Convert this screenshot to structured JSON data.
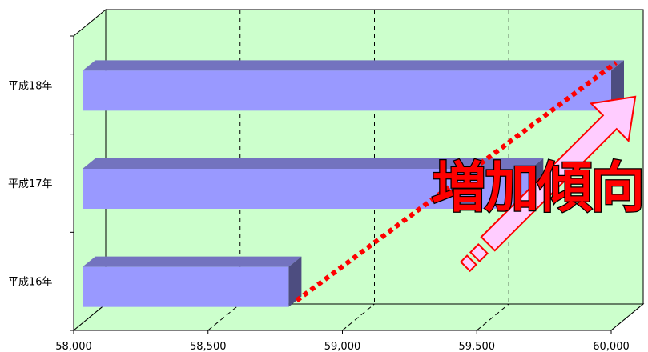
{
  "chart_data": {
    "type": "bar",
    "orientation": "horizontal",
    "style": "3d",
    "categories": [
      "平成16年",
      "平成17年",
      "平成18年"
    ],
    "values": [
      58800,
      59700,
      60000
    ],
    "xlim": [
      58000,
      60000
    ],
    "xticks": [
      58000,
      58500,
      59000,
      59500,
      60000
    ],
    "xtick_labels": [
      "58,000",
      "58,500",
      "59,000",
      "59,500",
      "60,000"
    ],
    "title": "",
    "xlabel": "",
    "ylabel": "",
    "grid": "vertical dashed",
    "annotation": "増加傾向",
    "colors": {
      "plot_background": "#ccffcc",
      "bar_front": "#9999ff",
      "bar_top": "#7373bf",
      "bar_side": "#4d4d80",
      "trend_line": "#ff0000",
      "arrow_fill": "#ffccff",
      "arrow_stroke": "#ff0000",
      "annotation_text": "#ff0000"
    }
  }
}
